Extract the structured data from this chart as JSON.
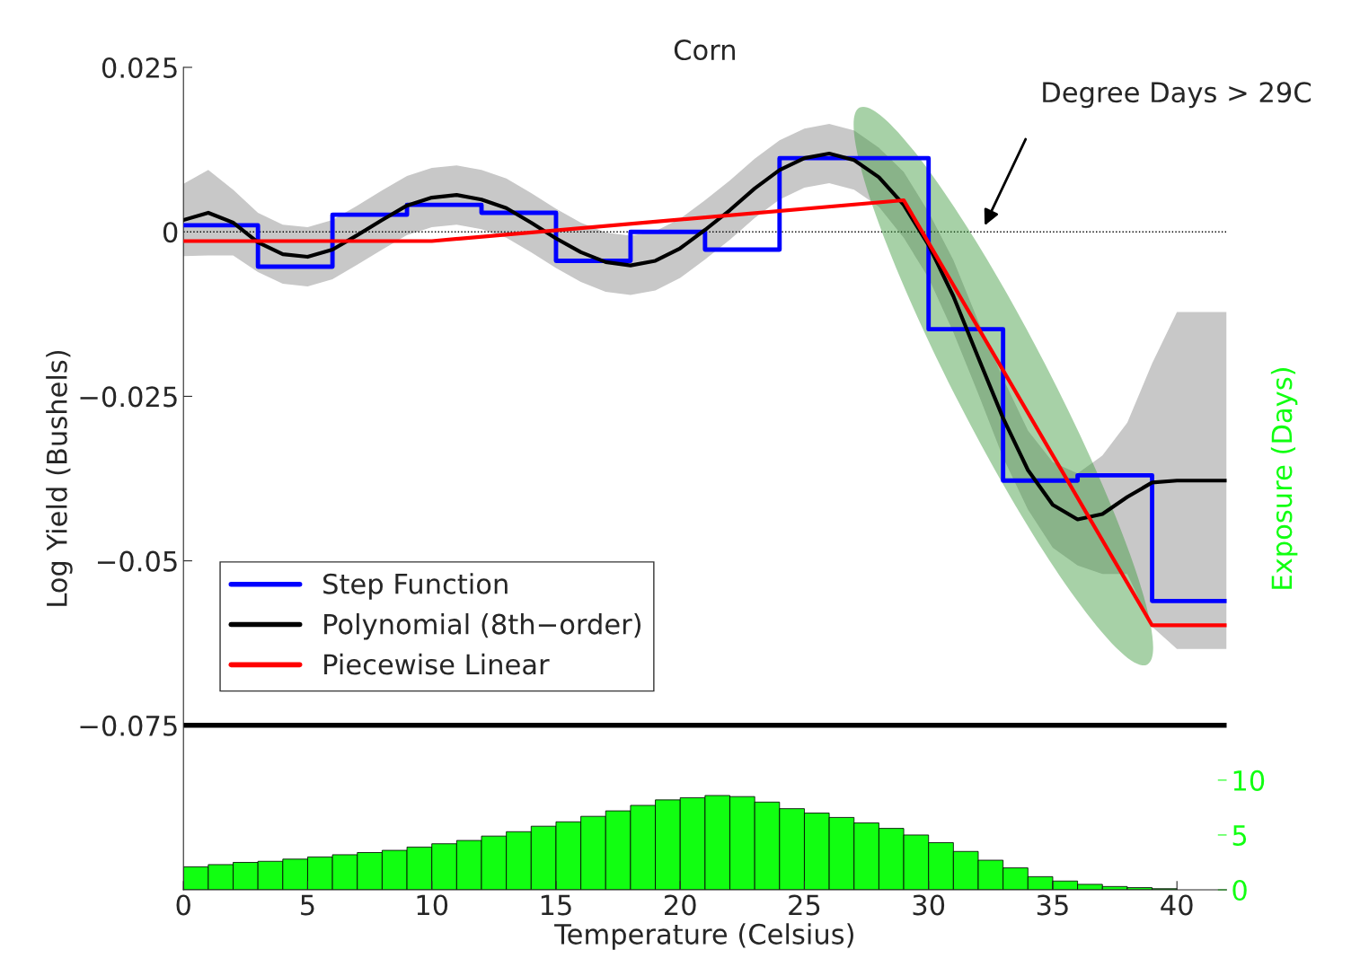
{
  "chart_data": {
    "type": "line",
    "title": "Corn",
    "xlabel": "Temperature (Celsius)",
    "ylabel": "Log Yield (Bushels)",
    "y2label": "Exposure (Days)",
    "xlim": [
      0,
      42
    ],
    "xticks": [
      0,
      5,
      10,
      15,
      20,
      25,
      30,
      35,
      40
    ],
    "ylim": [
      -0.1,
      0.025
    ],
    "yticks": [
      0.025,
      0,
      {
        "value": -0.025,
        "label": "−0.025"
      },
      {
        "value": -0.05,
        "label": "−0.05"
      },
      {
        "value": -0.075,
        "label": "−0.075"
      }
    ],
    "y2lim": [
      0,
      75
    ],
    "y2ticks": [
      0,
      5,
      10
    ],
    "grid": false,
    "legend": "bottom left",
    "ref_lines": [
      {
        "axis": "y",
        "value": 0,
        "color": "#000000",
        "line_style": "dotted"
      },
      {
        "axis": "y",
        "value": -0.075,
        "color": "#000000",
        "line_style": "solid"
      }
    ],
    "annotations": [
      "Degree Days > 29C"
    ],
    "series": [
      {
        "type": "step",
        "name": "Step Function",
        "color": "#0000ff",
        "x": [
          0,
          3,
          6,
          9,
          12,
          15,
          18,
          21,
          24,
          30,
          33,
          36,
          39,
          42
        ],
        "values": [
          0.001,
          -0.0053,
          0.0026,
          0.0041,
          0.0029,
          -0.0044,
          0.0,
          -0.0027,
          0.0112,
          -0.0148,
          -0.0378,
          -0.037,
          -0.0561,
          -0.0561
        ]
      },
      {
        "name": "Polynomial (8th−order)",
        "color": "#000000",
        "x": [
          0,
          1,
          2,
          3,
          4,
          5,
          6,
          7,
          8,
          9,
          10,
          11,
          12,
          13,
          14,
          15,
          16,
          17,
          18,
          19,
          20,
          21,
          22,
          23,
          24,
          25,
          26,
          27,
          28,
          29,
          30,
          31,
          32,
          33,
          34,
          35,
          36,
          37,
          38,
          39,
          40,
          41,
          42
        ],
        "values": [
          0.0018,
          0.0029,
          0.0014,
          -0.0016,
          -0.0034,
          -0.0038,
          -0.0027,
          -0.0005,
          0.0018,
          0.004,
          0.0052,
          0.0056,
          0.0049,
          0.0036,
          0.0014,
          -0.001,
          -0.0031,
          -0.0046,
          -0.0051,
          -0.0044,
          -0.0025,
          0.0003,
          0.0033,
          0.0066,
          0.0094,
          0.0112,
          0.0119,
          0.0109,
          0.0083,
          0.0041,
          -0.002,
          -0.0098,
          -0.0191,
          -0.0283,
          -0.0362,
          -0.0415,
          -0.0437,
          -0.0429,
          -0.0403,
          -0.0381,
          -0.0378,
          -0.0378,
          -0.0378
        ],
        "upper": [
          0.0073,
          0.0094,
          0.0064,
          0.0029,
          0.0011,
          0.0007,
          0.0018,
          0.004,
          0.0063,
          0.0085,
          0.0097,
          0.0101,
          0.0094,
          0.0081,
          0.0059,
          0.0035,
          0.0014,
          -0.0001,
          -0.0006,
          0.0001,
          0.002,
          0.0048,
          0.0078,
          0.0111,
          0.0139,
          0.0157,
          0.0164,
          0.0154,
          0.0128,
          0.0091,
          0.003,
          -0.0043,
          -0.0136,
          -0.0223,
          -0.0302,
          -0.035,
          -0.0367,
          -0.034,
          -0.029,
          -0.02,
          -0.0122,
          -0.0122,
          -0.0122
        ],
        "lower": [
          -0.0037,
          -0.0036,
          -0.0036,
          -0.0061,
          -0.0079,
          -0.0083,
          -0.0072,
          -0.005,
          -0.0027,
          -0.0005,
          0.0007,
          0.0011,
          0.0004,
          -0.0009,
          -0.0031,
          -0.0055,
          -0.0076,
          -0.0091,
          -0.0096,
          -0.0089,
          -0.007,
          -0.0042,
          -0.0012,
          0.0021,
          0.0049,
          0.0067,
          0.0074,
          0.0064,
          0.0038,
          -0.0009,
          -0.007,
          -0.0153,
          -0.0246,
          -0.0343,
          -0.0422,
          -0.048,
          -0.0507,
          -0.052,
          -0.052,
          -0.06,
          -0.0634,
          -0.0634,
          -0.0634
        ]
      },
      {
        "name": "Piecewise Linear",
        "color": "#ff0000",
        "x": [
          0,
          10,
          29,
          39,
          42
        ],
        "values": [
          -0.0014,
          -0.0014,
          0.0048,
          -0.0598,
          -0.0598
        ]
      },
      {
        "type": "histogram",
        "axis": "y2",
        "color": "#11ff11",
        "bins": [
          0,
          1,
          2,
          3,
          4,
          5,
          6,
          7,
          8,
          9,
          10,
          11,
          12,
          13,
          14,
          15,
          16,
          17,
          18,
          19,
          20,
          21,
          22,
          23,
          24,
          25,
          26,
          27,
          28,
          29,
          30,
          31,
          32,
          33,
          34,
          35,
          36,
          37,
          38,
          39,
          40
        ],
        "values": [
          2.1,
          2.3,
          2.5,
          2.6,
          2.8,
          3.0,
          3.2,
          3.4,
          3.6,
          3.9,
          4.2,
          4.5,
          4.9,
          5.3,
          5.8,
          6.2,
          6.7,
          7.2,
          7.7,
          8.2,
          8.4,
          8.6,
          8.5,
          8.0,
          7.4,
          7.0,
          6.6,
          6.1,
          5.6,
          5.0,
          4.3,
          3.5,
          2.7,
          2.0,
          1.2,
          0.8,
          0.5,
          0.3,
          0.2,
          0.1
        ]
      }
    ]
  }
}
